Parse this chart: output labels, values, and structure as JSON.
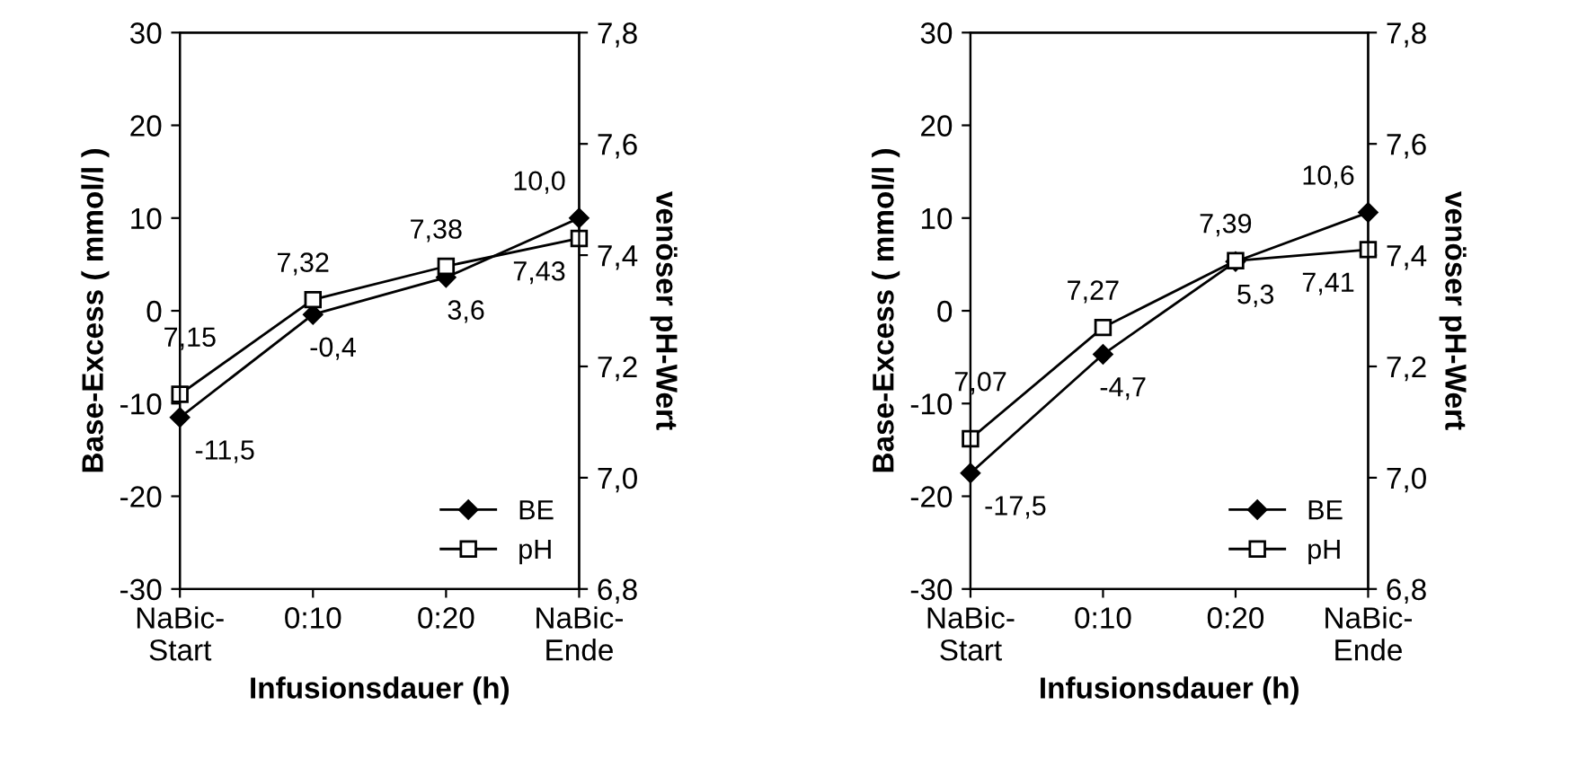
{
  "chart_data": [
    {
      "type": "line",
      "xlabel": "Infusionsdauer (h)",
      "ylabel": "Base-Excess ( mmol/l )",
      "y2label": "venöser pH-Wert",
      "categories": [
        "NaBic-\nStart",
        "0:10",
        "0:20",
        "NaBic-\nEnde"
      ],
      "series": [
        {
          "name": "BE",
          "color": "#000000",
          "marker": "diamond",
          "values": [
            -11.5,
            -0.4,
            3.6,
            10.0
          ],
          "value_labels": [
            "-11,5",
            "-0,4",
            "3,6",
            "10,0"
          ]
        },
        {
          "name": "pH",
          "color": "#000000",
          "marker": "square",
          "axis": "y2",
          "values": [
            7.15,
            7.32,
            7.38,
            7.43
          ],
          "value_labels": [
            "7,15",
            "7,32",
            "7,38",
            "7,43"
          ]
        }
      ],
      "ylim": [
        -30,
        30
      ],
      "yticks": [
        -30,
        -20,
        -10,
        0,
        10,
        20,
        30
      ],
      "y2lim": [
        6.8,
        7.8
      ],
      "y2ticks": [
        {
          "value": 6.8,
          "label": "6,8"
        },
        {
          "value": 7.0,
          "label": "7,0"
        },
        {
          "value": 7.2,
          "label": "7,2"
        },
        {
          "value": 7.4,
          "label": "7,4"
        },
        {
          "value": 7.6,
          "label": "7,6"
        },
        {
          "value": 7.8,
          "label": "7,8"
        }
      ],
      "grid": false,
      "legend": "bottom right",
      "line_style": "solid"
    },
    {
      "type": "line",
      "xlabel": "Infusionsdauer (h)",
      "ylabel": "Base-Excess ( mmol/l )",
      "y2label": "venöser pH-Wert",
      "categories": [
        "NaBic-\nStart",
        "0:10",
        "0:20",
        "NaBic-\nEnde"
      ],
      "series": [
        {
          "name": "BE",
          "color": "#000000",
          "marker": "diamond",
          "values": [
            -17.5,
            -4.7,
            5.3,
            10.6
          ],
          "value_labels": [
            "-17,5",
            "-4,7",
            "5,3",
            "10,6"
          ]
        },
        {
          "name": "pH",
          "color": "#000000",
          "marker": "square",
          "axis": "y2",
          "values": [
            7.07,
            7.27,
            7.39,
            7.41
          ],
          "value_labels": [
            "7,07",
            "7,27",
            "7,39",
            "7,41"
          ]
        }
      ],
      "ylim": [
        -30,
        30
      ],
      "yticks": [
        -30,
        -20,
        -10,
        0,
        10,
        20,
        30
      ],
      "y2lim": [
        6.8,
        7.8
      ],
      "y2ticks": [
        {
          "value": 6.8,
          "label": "6,8"
        },
        {
          "value": 7.0,
          "label": "7,0"
        },
        {
          "value": 7.2,
          "label": "7,2"
        },
        {
          "value": 7.4,
          "label": "7,4"
        },
        {
          "value": 7.6,
          "label": "7,6"
        },
        {
          "value": 7.8,
          "label": "7,8"
        }
      ],
      "grid": false,
      "legend": "bottom right",
      "line_style": "solid"
    }
  ]
}
